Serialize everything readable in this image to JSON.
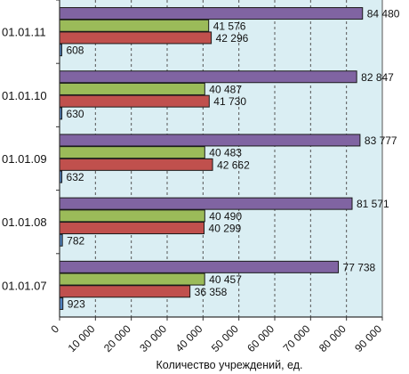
{
  "chart_data": {
    "type": "bar",
    "orientation": "horizontal",
    "title": "",
    "xlabel": "Количество учреждений, ед.",
    "ylabel": "",
    "xlim": [
      0,
      90000
    ],
    "x_ticks": [
      0,
      10000,
      20000,
      30000,
      40000,
      50000,
      60000,
      70000,
      80000,
      90000
    ],
    "x_tick_labels": [
      "0",
      "10 000",
      "20 000",
      "30 000",
      "40 000",
      "50 000",
      "60 000",
      "70 000",
      "80 000",
      "90 000"
    ],
    "grid": "vertical dashed",
    "plot_background": "#daeef3",
    "categories": [
      "01.01.07",
      "01.01.08",
      "01.01.09",
      "01.01.10",
      "01.01.11"
    ],
    "series": [
      {
        "color": "#4f81bd",
        "values": [
          923,
          782,
          632,
          630,
          608
        ],
        "labels": [
          "923",
          "782",
          "632",
          "630",
          "608"
        ]
      },
      {
        "color": "#c0504d",
        "values": [
          36358,
          40299,
          42662,
          41730,
          42296
        ],
        "labels": [
          "36 358",
          "40 299",
          "42 662",
          "41 730",
          "42 296"
        ]
      },
      {
        "color": "#9bbb59",
        "values": [
          40457,
          40490,
          40483,
          40487,
          41576
        ],
        "labels": [
          "40 457",
          "40 490",
          "40 483",
          "40 487",
          "41 576"
        ]
      },
      {
        "color": "#8064a2",
        "values": [
          77738,
          81571,
          83777,
          82847,
          84480
        ],
        "labels": [
          "77 738",
          "81 571",
          "83 777",
          "82 847",
          "84 480"
        ]
      }
    ]
  }
}
